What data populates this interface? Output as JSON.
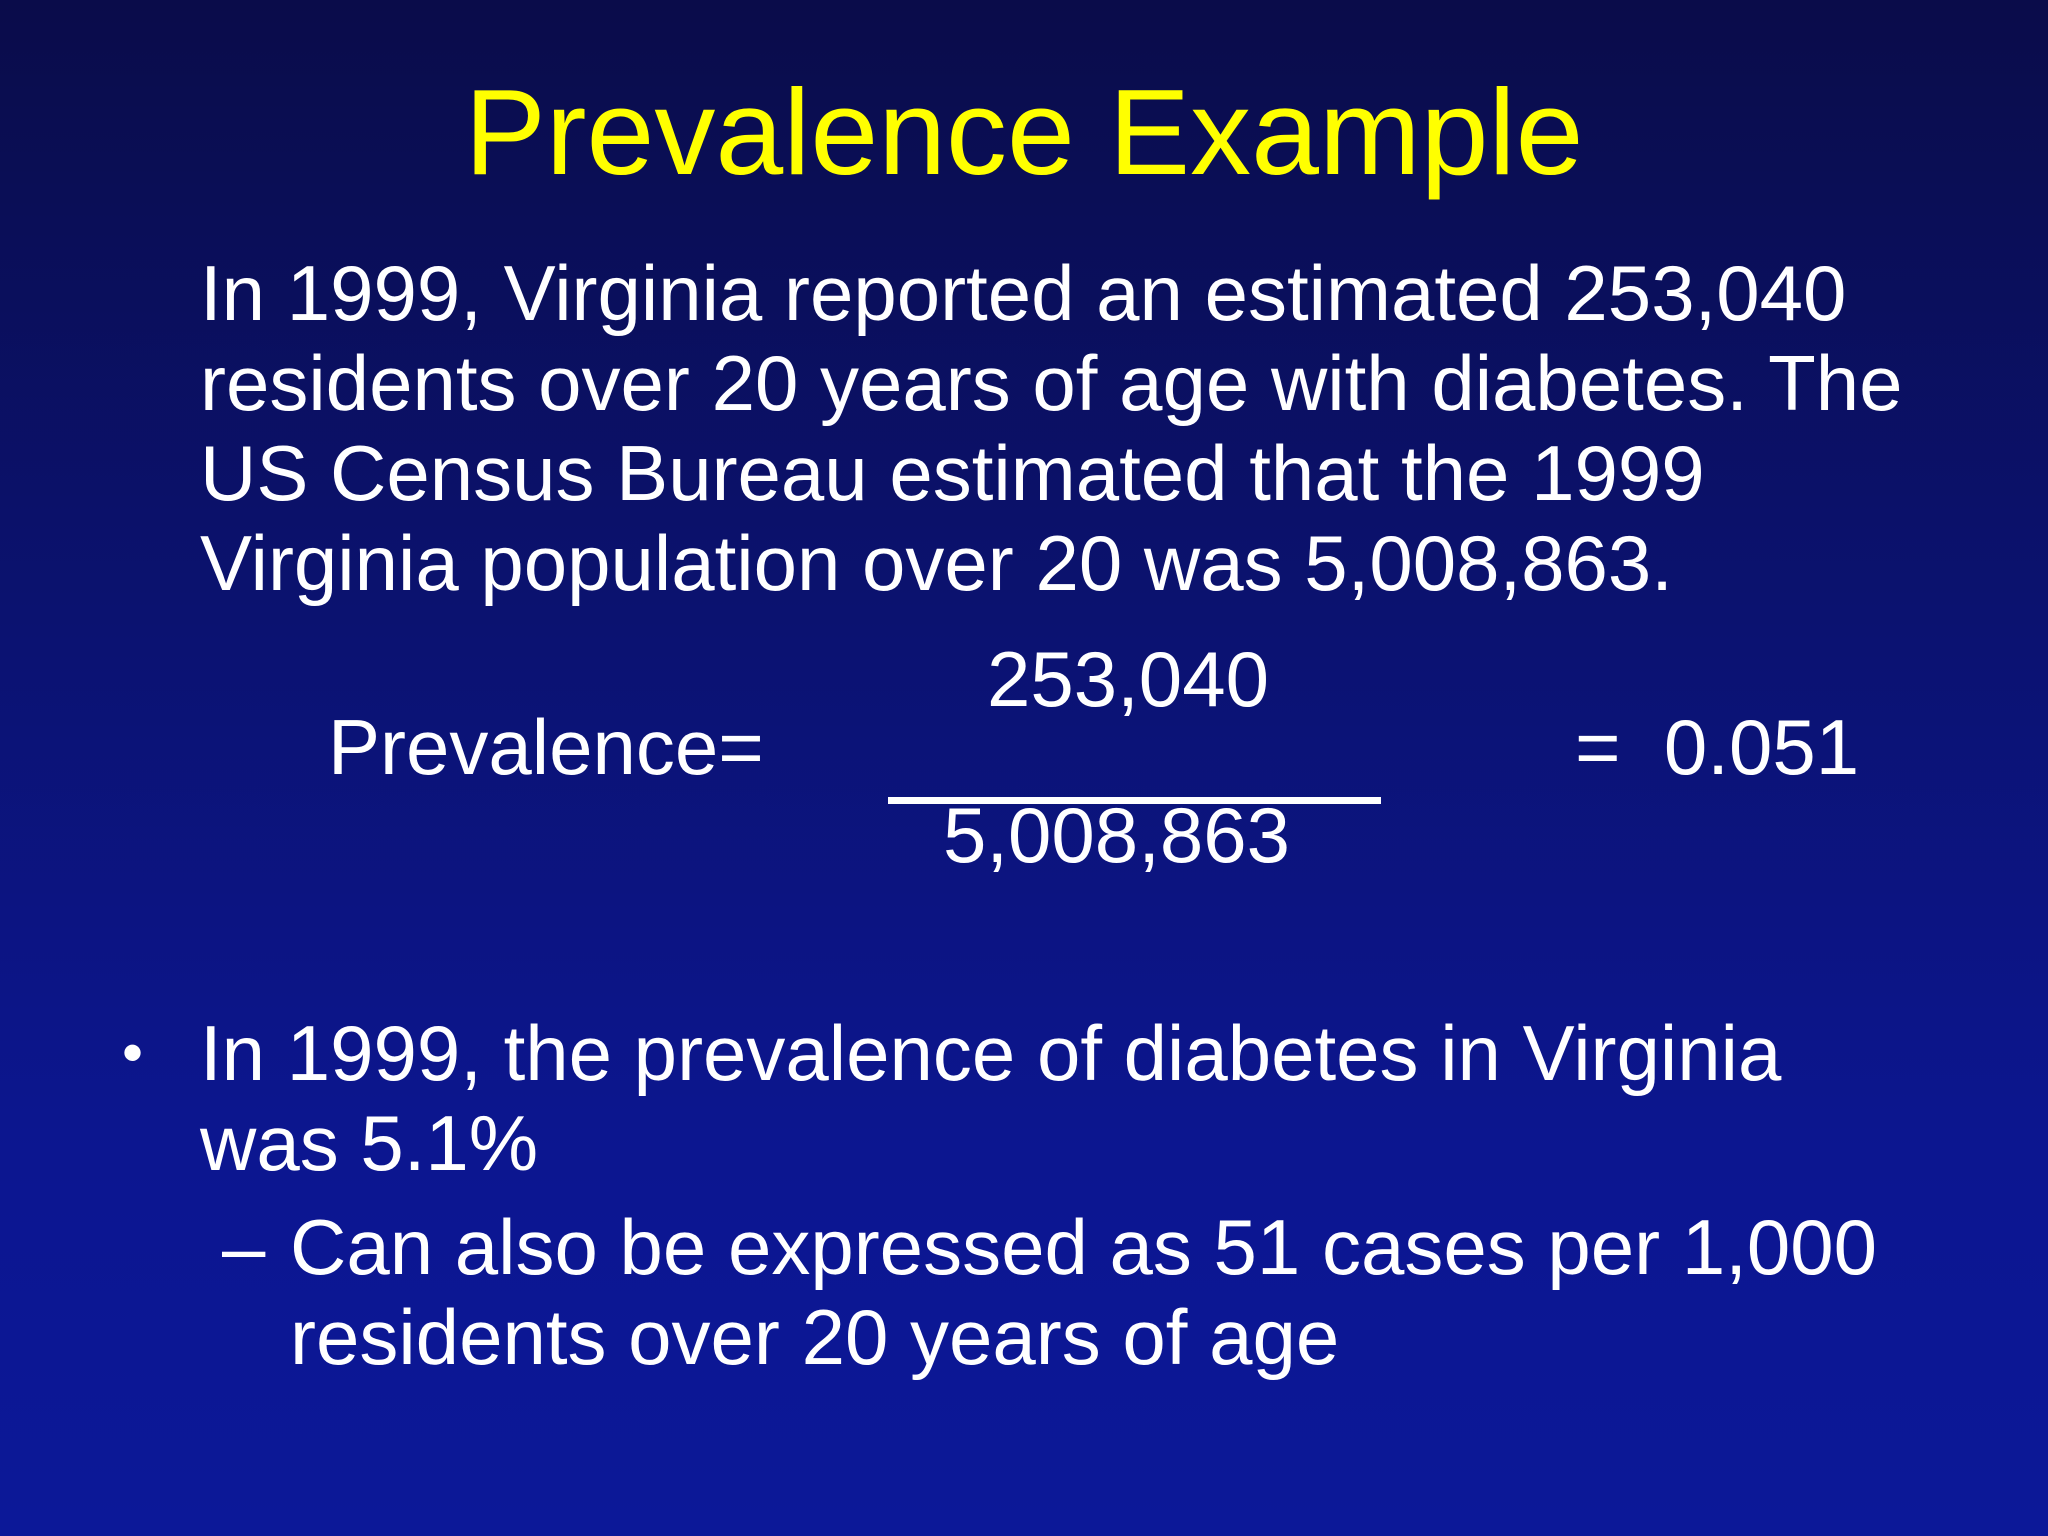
{
  "slide": {
    "title": "Prevalence Example",
    "intro": "In 1999, Virginia reported an estimated 253,040 residents over 20 years of age with diabetes. The US Census Bureau estimated that the 1999 Virginia population over 20 was 5,008,863.",
    "equation": {
      "label": "Prevalence=",
      "numerator": "253,040",
      "denominator": "5,008,863",
      "result": "=  0.051"
    },
    "bullet": {
      "mark": "•",
      "text": "In 1999, the prevalence of diabetes in Virginia was 5.1%"
    },
    "sub_bullet": {
      "mark": "–",
      "text": "Can also be expressed as 51 cases per 1,000 residents over 20 years of age"
    },
    "colors": {
      "title": "#ffff00",
      "text": "#ffffff",
      "background_top": "#0a0c4a",
      "background_bottom": "#0c1898"
    }
  }
}
